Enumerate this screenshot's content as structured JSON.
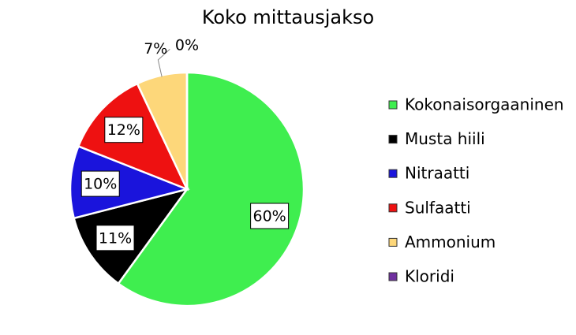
{
  "chart_data": {
    "type": "pie",
    "title": "Koko mittausjakso",
    "categories": [
      "Kokonaisorgaaninen",
      "Musta hiili",
      "Nitraatti",
      "Sulfaatti",
      "Ammonium",
      "Kloridi"
    ],
    "values": [
      60,
      11,
      10,
      12,
      7,
      0
    ],
    "value_labels": [
      "60%",
      "11%",
      "10%",
      "12%",
      "7%",
      "0%"
    ],
    "colors": [
      "#3fee4f",
      "#000000",
      "#1a14dc",
      "#ee1111",
      "#fdd77a",
      "#7030a0"
    ],
    "legend": "right"
  }
}
